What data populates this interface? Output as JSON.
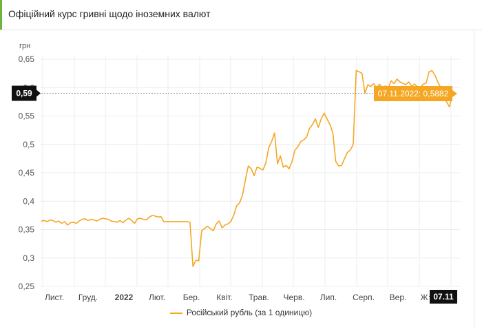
{
  "header": {
    "title": "Офіційний курс гривні щодо іноземних валют"
  },
  "legend": {
    "label": "Російський рубль (за 1 одиницю)"
  },
  "colors": {
    "line": "#f5a623",
    "accent": "#6fb43f",
    "marker": "#111111"
  },
  "chart_data": {
    "type": "line",
    "ylabel": "грн",
    "ylim": [
      0.25,
      0.65
    ],
    "yticks": [
      "0,25",
      "0,3",
      "0,35",
      "0,4",
      "0,45",
      "0,5",
      "0,55",
      "0,6",
      "0,65"
    ],
    "x_labels": [
      "Лист.",
      "Груд.",
      "2022",
      "Лют.",
      "Бер.",
      "Квіт.",
      "Трав.",
      "Черв.",
      "Лип.",
      "Серп.",
      "Вер.",
      "Ж"
    ],
    "x_label_bold": "2022",
    "grid": true,
    "tooltip": "07.11.2022: 0,5882",
    "y_marker": "0,59",
    "x_marker": "07.11",
    "series": [
      {
        "name": "Російський рубль (за 1 одиницю)",
        "x_start": "2021-11-01",
        "x_end": "2022-11-07",
        "values": [
          0.365,
          0.366,
          0.364,
          0.367,
          0.366,
          0.363,
          0.365,
          0.361,
          0.364,
          0.358,
          0.362,
          0.363,
          0.361,
          0.365,
          0.368,
          0.369,
          0.366,
          0.368,
          0.367,
          0.365,
          0.368,
          0.37,
          0.369,
          0.368,
          0.365,
          0.364,
          0.363,
          0.366,
          0.362,
          0.367,
          0.37,
          0.366,
          0.361,
          0.369,
          0.37,
          0.368,
          0.367,
          0.372,
          0.375,
          0.374,
          0.372,
          0.373,
          0.364,
          0.364,
          0.364,
          0.364,
          0.364,
          0.364,
          0.364,
          0.364,
          0.364,
          0.363,
          0.285,
          0.296,
          0.295,
          0.348,
          0.352,
          0.356,
          0.352,
          0.348,
          0.36,
          0.365,
          0.353,
          0.358,
          0.36,
          0.364,
          0.375,
          0.392,
          0.397,
          0.41,
          0.438,
          0.462,
          0.457,
          0.445,
          0.46,
          0.458,
          0.455,
          0.467,
          0.494,
          0.505,
          0.52,
          0.466,
          0.48,
          0.46,
          0.463,
          0.457,
          0.47,
          0.49,
          0.496,
          0.505,
          0.508,
          0.513,
          0.528,
          0.535,
          0.545,
          0.53,
          0.545,
          0.555,
          0.545,
          0.535,
          0.52,
          0.47,
          0.462,
          0.463,
          0.475,
          0.486,
          0.49,
          0.5,
          0.63,
          0.628,
          0.625,
          0.59,
          0.605,
          0.602,
          0.607,
          0.6,
          0.606,
          0.6,
          0.603,
          0.6,
          0.612,
          0.607,
          0.615,
          0.61,
          0.608,
          0.605,
          0.61,
          0.603,
          0.606,
          0.602,
          0.6,
          0.606,
          0.608,
          0.628,
          0.63,
          0.622,
          0.61,
          0.6,
          0.585,
          0.575,
          0.566,
          0.588
        ]
      }
    ]
  }
}
